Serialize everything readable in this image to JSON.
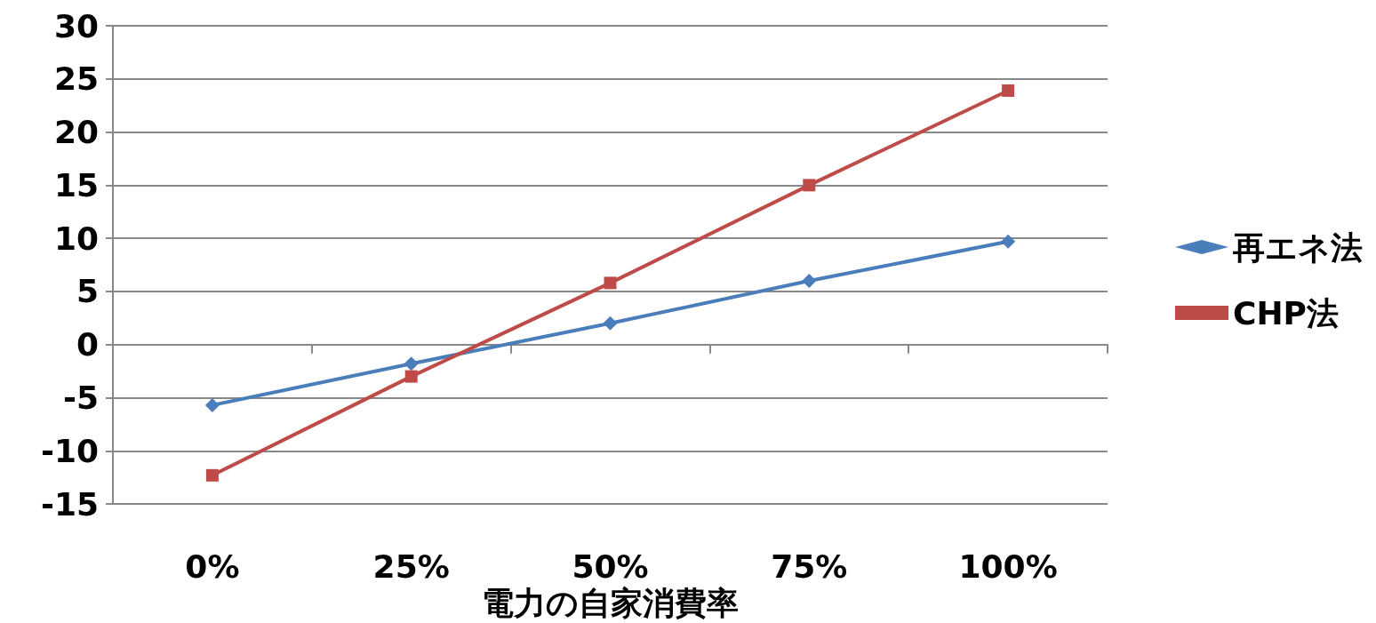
{
  "chart_data": {
    "type": "line",
    "xlabel": "電力の自家消費率",
    "categories": [
      "0%",
      "25%",
      "50%",
      "75%",
      "100%"
    ],
    "series": [
      {
        "name": "再エネ法",
        "color": "#4a7ebb",
        "marker": "diamond",
        "values": [
          -5.7,
          -1.8,
          2.0,
          6.0,
          9.7
        ]
      },
      {
        "name": "CHP法",
        "color": "#be4b48",
        "marker": "square",
        "values": [
          -12.3,
          -3.0,
          5.8,
          15.0,
          23.9
        ]
      }
    ],
    "ylim": [
      -15,
      30
    ],
    "yticks": [
      -15,
      -10,
      -5,
      0,
      5,
      10,
      15,
      20,
      25,
      30
    ],
    "grid": "y",
    "legend": "right",
    "line_style": "solid"
  }
}
